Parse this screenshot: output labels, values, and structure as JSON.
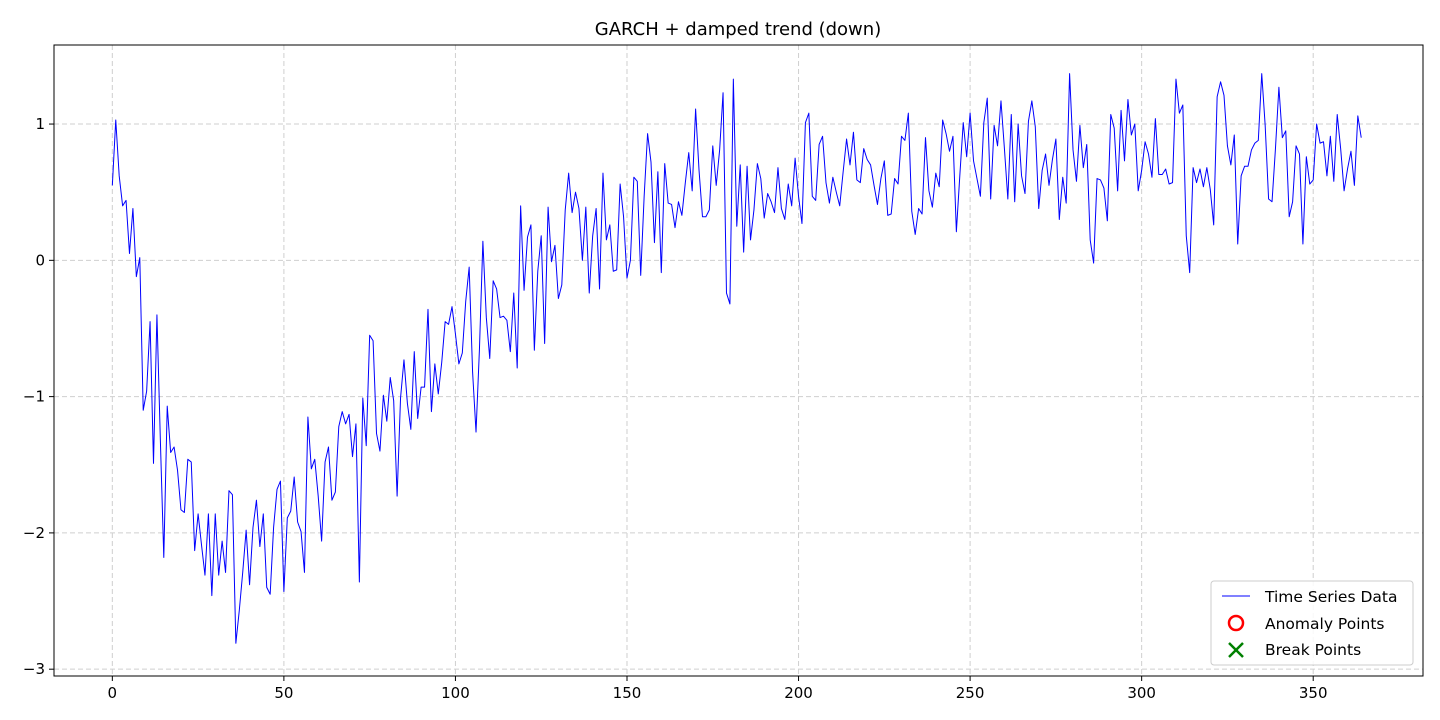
{
  "chart_data": {
    "type": "line",
    "title": "GARCH + damped trend (down)",
    "xlabel": "",
    "ylabel": "",
    "xlim": [
      -17,
      382
    ],
    "ylim": [
      -3.05,
      1.58
    ],
    "x_ticks": [
      0,
      50,
      100,
      150,
      200,
      250,
      300,
      350
    ],
    "y_ticks": [
      -3,
      -2,
      -1,
      0,
      1
    ],
    "y_tick_labels": [
      "−3",
      "−2",
      "−1",
      "0",
      "1"
    ],
    "grid": true,
    "legend_position": "lower-right",
    "series": [
      {
        "name": "Time Series Data",
        "color": "#0000ff",
        "x_start": 0,
        "x_step": 1,
        "values": [
          0.55,
          1.03,
          0.62,
          0.4,
          0.44,
          0.05,
          0.38,
          -0.12,
          0.02,
          -1.1,
          -0.96,
          -0.45,
          -1.49,
          -0.4,
          -1.32,
          -2.18,
          -1.07,
          -1.41,
          -1.37,
          -1.54,
          -1.83,
          -1.85,
          -1.46,
          -1.48,
          -2.13,
          -1.86,
          -2.09,
          -2.31,
          -1.86,
          -2.46,
          -1.86,
          -2.31,
          -2.06,
          -2.29,
          -1.69,
          -1.72,
          -2.81,
          -2.57,
          -2.29,
          -1.98,
          -2.38,
          -1.96,
          -1.76,
          -2.1,
          -1.86,
          -2.4,
          -2.45,
          -1.96,
          -1.68,
          -1.62,
          -2.43,
          -1.89,
          -1.84,
          -1.59,
          -1.92,
          -1.99,
          -2.29,
          -1.15,
          -1.53,
          -1.46,
          -1.73,
          -2.06,
          -1.48,
          -1.37,
          -1.76,
          -1.7,
          -1.22,
          -1.11,
          -1.2,
          -1.13,
          -1.44,
          -1.2,
          -2.36,
          -1.01,
          -1.36,
          -0.55,
          -0.59,
          -1.27,
          -1.4,
          -0.99,
          -1.18,
          -0.86,
          -1.03,
          -1.73,
          -1.01,
          -0.73,
          -1.05,
          -1.24,
          -0.67,
          -1.16,
          -0.93,
          -0.93,
          -0.36,
          -1.11,
          -0.76,
          -0.98,
          -0.75,
          -0.45,
          -0.47,
          -0.34,
          -0.54,
          -0.76,
          -0.68,
          -0.3,
          -0.05,
          -0.82,
          -1.26,
          -0.65,
          0.14,
          -0.42,
          -0.72,
          -0.15,
          -0.21,
          -0.42,
          -0.41,
          -0.44,
          -0.67,
          -0.24,
          -0.79,
          0.4,
          -0.22,
          0.17,
          0.26,
          -0.66,
          -0.08,
          0.18,
          -0.61,
          0.39,
          -0.01,
          0.11,
          -0.28,
          -0.18,
          0.37,
          0.64,
          0.35,
          0.5,
          0.38,
          0.0,
          0.39,
          -0.24,
          0.18,
          0.38,
          -0.21,
          0.64,
          0.15,
          0.26,
          -0.08,
          -0.07,
          0.56,
          0.32,
          -0.13,
          0.0,
          0.61,
          0.58,
          -0.11,
          0.47,
          0.93,
          0.72,
          0.13,
          0.65,
          -0.09,
          0.71,
          0.42,
          0.41,
          0.24,
          0.43,
          0.33,
          0.57,
          0.79,
          0.51,
          1.11,
          0.66,
          0.32,
          0.32,
          0.37,
          0.84,
          0.55,
          0.81,
          1.23,
          -0.24,
          -0.32,
          1.33,
          0.25,
          0.7,
          0.06,
          0.69,
          0.15,
          0.37,
          0.71,
          0.6,
          0.31,
          0.49,
          0.43,
          0.35,
          0.68,
          0.38,
          0.3,
          0.56,
          0.4,
          0.75,
          0.47,
          0.27,
          1.01,
          1.08,
          0.47,
          0.44,
          0.85,
          0.91,
          0.57,
          0.42,
          0.61,
          0.5,
          0.4,
          0.65,
          0.89,
          0.7,
          0.94,
          0.59,
          0.57,
          0.82,
          0.74,
          0.7,
          0.55,
          0.41,
          0.6,
          0.73,
          0.33,
          0.34,
          0.6,
          0.56,
          0.91,
          0.88,
          1.08,
          0.36,
          0.19,
          0.38,
          0.34,
          0.9,
          0.51,
          0.39,
          0.64,
          0.54,
          1.03,
          0.93,
          0.8,
          0.91,
          0.21,
          0.62,
          1.01,
          0.76,
          1.08,
          0.73,
          0.6,
          0.47,
          1.01,
          1.19,
          0.45,
          0.99,
          0.84,
          1.17,
          0.82,
          0.45,
          1.07,
          0.43,
          1.0,
          0.62,
          0.49,
          1.02,
          1.17,
          0.98,
          0.38,
          0.66,
          0.78,
          0.55,
          0.74,
          0.89,
          0.3,
          0.61,
          0.42,
          1.37,
          0.81,
          0.58,
          0.99,
          0.68,
          0.85,
          0.15,
          -0.02,
          0.6,
          0.59,
          0.53,
          0.29,
          1.07,
          0.97,
          0.51,
          1.1,
          0.73,
          1.18,
          0.92,
          1.0,
          0.51,
          0.66,
          0.87,
          0.78,
          0.61,
          1.04,
          0.63,
          0.63,
          0.67,
          0.56,
          0.57,
          1.33,
          1.08,
          1.14,
          0.18,
          -0.09,
          0.68,
          0.57,
          0.67,
          0.54,
          0.68,
          0.52,
          0.26,
          1.2,
          1.31,
          1.21,
          0.84,
          0.7,
          0.92,
          0.12,
          0.62,
          0.69,
          0.69,
          0.81,
          0.86,
          0.88,
          1.37,
          0.99,
          0.45,
          0.43,
          0.82,
          1.27,
          0.9,
          0.95,
          0.32,
          0.43,
          0.84,
          0.78,
          0.12,
          0.76,
          0.56,
          0.59,
          1.0,
          0.86,
          0.87,
          0.62,
          0.91,
          0.58,
          1.07,
          0.82,
          0.51,
          0.67,
          0.8,
          0.55,
          1.06,
          0.9
        ]
      }
    ],
    "legend": [
      {
        "label": "Time Series Data",
        "marker": "line",
        "color": "#0000ff"
      },
      {
        "label": "Anomaly Points",
        "marker": "circle",
        "color": "#ff0000"
      },
      {
        "label": "Break Points",
        "marker": "x",
        "color": "#008000"
      }
    ]
  }
}
